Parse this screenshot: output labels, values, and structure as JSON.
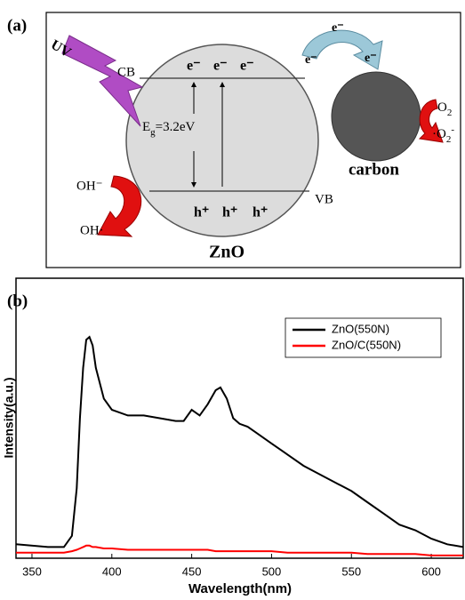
{
  "diagram": {
    "panel_label": "(a)",
    "uv": "UV",
    "cb": "CB",
    "vb": "VB",
    "electrons": [
      "e⁻",
      "e⁻",
      "e⁻"
    ],
    "holes": [
      "h⁺",
      "h⁺",
      "h⁺"
    ],
    "band_gap": {
      "symbol": "E",
      "subscript": "g",
      "value": "=3.2eV"
    },
    "zno": "ZnO",
    "carbon": "carbon",
    "transfer_electrons": [
      "e⁻",
      "e⁻",
      "e⁻"
    ],
    "oh_minus": "OH⁻",
    "oh_radical": "OH·",
    "o2": {
      "symbol": "O",
      "subscript": "2"
    },
    "superoxide": {
      "symbol": "·O",
      "subscript": "2",
      "superscript": "-"
    }
  },
  "chart_data": {
    "type": "line",
    "panel_label": "(b)",
    "x_label": "Wavelength(nm)",
    "y_label": "Intensity(a.u.)",
    "x": [
      340,
      360,
      370,
      375,
      378,
      380,
      382,
      384,
      386,
      388,
      390,
      395,
      400,
      410,
      420,
      430,
      440,
      445,
      450,
      455,
      460,
      465,
      468,
      472,
      476,
      480,
      485,
      490,
      500,
      510,
      520,
      530,
      540,
      550,
      560,
      570,
      580,
      590,
      600,
      610,
      620
    ],
    "series": [
      {
        "name": "ZnO(550N)",
        "color": "#000000",
        "values": [
          5,
          4,
          4,
          8,
          25,
          50,
          68,
          78,
          79,
          76,
          68,
          57,
          53,
          51,
          51,
          50,
          49,
          49,
          53,
          51,
          55,
          60,
          61,
          57,
          50,
          48,
          47,
          45,
          41,
          37,
          33,
          30,
          27,
          24,
          20,
          16,
          12,
          10,
          7,
          5,
          4
        ]
      },
      {
        "name": "ZnO/C(550N)",
        "color": "#ff0000",
        "values": [
          2,
          2,
          2,
          2.5,
          3,
          3.5,
          4,
          4.5,
          4.5,
          4,
          4,
          3.5,
          3.5,
          3,
          3,
          3,
          3,
          3,
          3,
          3,
          3,
          2.5,
          2.5,
          2.5,
          2.5,
          2.5,
          2.5,
          2.5,
          2.5,
          2,
          2,
          2,
          2,
          2,
          1.5,
          1.5,
          1.5,
          1.5,
          1,
          1,
          1
        ]
      }
    ],
    "xlim": [
      340,
      620
    ],
    "xticks": [
      350,
      400,
      450,
      500,
      550,
      600
    ],
    "ylim": [
      0,
      100
    ],
    "legend": "upper right"
  }
}
